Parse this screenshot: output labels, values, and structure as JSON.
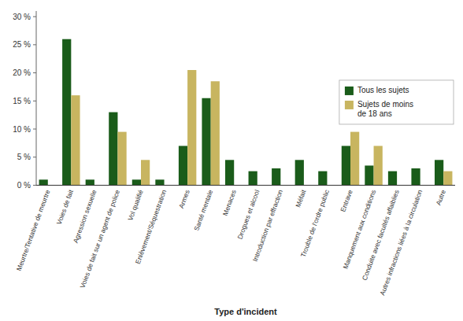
{
  "chart_data": {
    "type": "bar",
    "xlabel": "Type d'incident",
    "categories": [
      "Meurtre/Tentative de meurtre",
      "Voies de fait",
      "Agression sexuelle",
      "Voies de fait sur un agent de police",
      "Vol qualifié",
      "Enlèvement/Séquestration",
      "Armes",
      "Santé mentale",
      "Menaces",
      "Drogues et alcool",
      "Introduction par effraction",
      "Méfait",
      "Trouble de l'ordre public",
      "Entrave",
      "Manquement aux conditions",
      "Conduite avec facultés affaiblies",
      "Autres infractions liées à la circulation",
      "Autre"
    ],
    "series": [
      {
        "name": "Tous les sujets",
        "color": "#1a5c1a",
        "values": [
          1,
          26,
          1,
          13,
          1,
          1,
          7,
          15.5,
          4.5,
          2.5,
          3,
          4.5,
          2.5,
          7,
          3.5,
          2.5,
          3,
          4.5
        ]
      },
      {
        "name": "Sujets de moins\nde 18 ans",
        "color": "#c8b560",
        "values": [
          0,
          16,
          0,
          9.5,
          4.5,
          0,
          20.5,
          18.5,
          0,
          0,
          0,
          0,
          0,
          9.5,
          7,
          0,
          0,
          2.5
        ]
      }
    ],
    "ylim": [
      0,
      31
    ],
    "yticks": [
      {
        "value": 0,
        "label": "0 %"
      },
      {
        "value": 5,
        "label": "5 %"
      },
      {
        "value": 10,
        "label": "10 %"
      },
      {
        "value": 15,
        "label": "15 %"
      },
      {
        "value": 20,
        "label": "20 %"
      },
      {
        "value": 25,
        "label": "25 %"
      },
      {
        "value": 30,
        "label": "30 %"
      }
    ],
    "grid": false,
    "legend": "lower right"
  }
}
